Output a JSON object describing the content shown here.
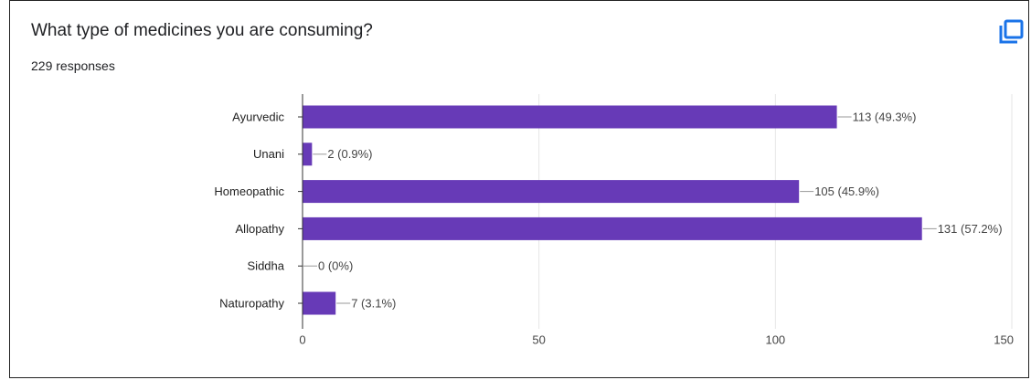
{
  "question": {
    "title": "What type of medicines you are consuming?",
    "responses": "229 responses"
  },
  "colors": {
    "bar": "#673ab7",
    "grid": "#e6e6e6",
    "axis": "#333333",
    "leader": "#999999",
    "copy_icon": "#1a73e8"
  },
  "icons": {
    "copy": "copy-icon"
  },
  "chart_data": {
    "type": "bar",
    "orientation": "horizontal",
    "categories": [
      "Ayurvedic",
      "Unani",
      "Homeopathic",
      "Allopathy",
      "Siddha",
      "Naturopathy"
    ],
    "values": [
      113,
      2,
      105,
      131,
      0,
      7
    ],
    "data_labels": [
      "113 (49.3%)",
      "2 (0.9%)",
      "105 (45.9%)",
      "131 (57.2%)",
      "0 (0%)",
      "7 (3.1%)"
    ],
    "xlim": [
      0,
      150
    ],
    "xticks": [
      0,
      50,
      100,
      150
    ],
    "title": "",
    "xlabel": "",
    "ylabel": "",
    "grid": true,
    "legend": "none"
  }
}
